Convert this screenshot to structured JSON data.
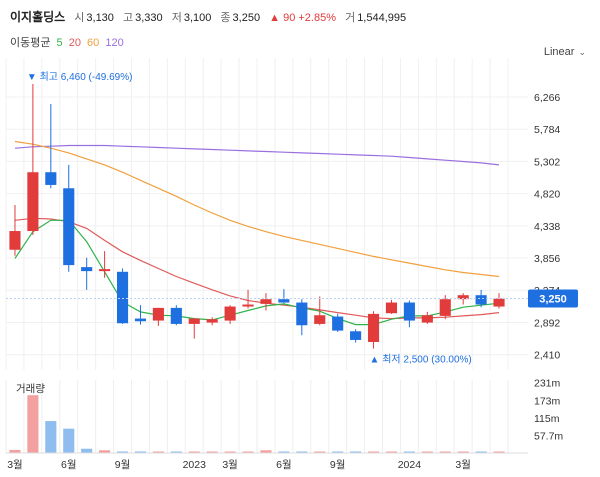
{
  "header": {
    "name": "이지홀딩스",
    "open_label": "시",
    "open": "3,130",
    "high_label": "고",
    "high": "3,330",
    "low_label": "저",
    "low": "3,100",
    "close_label": "종",
    "close": "3,250",
    "change": "▲ 90 +2.85%",
    "volume_label": "거",
    "volume": "1,544,995"
  },
  "moving_avg": {
    "label": "이동평균",
    "periods": [
      {
        "value": "5",
        "color": "#2eb34a"
      },
      {
        "value": "20",
        "color": "#e05a5a"
      },
      {
        "value": "60",
        "color": "#f0a03c"
      },
      {
        "value": "120",
        "color": "#9a6fe0"
      }
    ]
  },
  "scale_mode": "Linear",
  "colors": {
    "up": "#e23b3b",
    "down": "#1e6fe0",
    "up_vol": "#f2a0a0",
    "down_vol": "#8fbdf0",
    "current": "#1e6fe0"
  },
  "chart_data": {
    "type": "candlestick",
    "title": "이지홀딩스",
    "price_ticks": [
      "6,266",
      "5,784",
      "5,302",
      "4,820",
      "4,338",
      "3,856",
      "3,374",
      "2,892",
      "2,410"
    ],
    "price_tick_values": [
      6266,
      5784,
      5302,
      4820,
      4338,
      3856,
      3374,
      2892,
      2410
    ],
    "ylim": [
      2300,
      6700
    ],
    "x_labels": [
      "3월",
      "6월",
      "9월",
      "2023",
      "3월",
      "6월",
      "9월",
      "2024",
      "3월"
    ],
    "x_label_index": [
      0,
      3,
      6,
      10,
      12,
      15,
      18,
      22,
      25
    ],
    "candles": [
      {
        "o": 3980,
        "h": 4650,
        "l": 3890,
        "c": 4260
      },
      {
        "o": 4260,
        "h": 6460,
        "l": 4200,
        "c": 5140
      },
      {
        "o": 5140,
        "h": 6160,
        "l": 4900,
        "c": 4950
      },
      {
        "o": 4900,
        "h": 5250,
        "l": 3650,
        "c": 3750
      },
      {
        "o": 3720,
        "h": 3860,
        "l": 3380,
        "c": 3660
      },
      {
        "o": 3660,
        "h": 3960,
        "l": 3560,
        "c": 3690
      },
      {
        "o": 3650,
        "h": 3700,
        "l": 2870,
        "c": 2880
      },
      {
        "o": 2950,
        "h": 3150,
        "l": 2860,
        "c": 2910
      },
      {
        "o": 2920,
        "h": 3110,
        "l": 2840,
        "c": 3110
      },
      {
        "o": 3110,
        "h": 3150,
        "l": 2850,
        "c": 2870
      },
      {
        "o": 2870,
        "h": 2960,
        "l": 2650,
        "c": 2950
      },
      {
        "o": 2890,
        "h": 2970,
        "l": 2850,
        "c": 2940
      },
      {
        "o": 2920,
        "h": 3150,
        "l": 2870,
        "c": 3130
      },
      {
        "o": 3130,
        "h": 3380,
        "l": 3100,
        "c": 3160
      },
      {
        "o": 3170,
        "h": 3330,
        "l": 3070,
        "c": 3240
      },
      {
        "o": 3240,
        "h": 3390,
        "l": 3180,
        "c": 3190
      },
      {
        "o": 3190,
        "h": 3240,
        "l": 2700,
        "c": 2850
      },
      {
        "o": 2870,
        "h": 3280,
        "l": 2850,
        "c": 3000
      },
      {
        "o": 2980,
        "h": 3020,
        "l": 2750,
        "c": 2770
      },
      {
        "o": 2760,
        "h": 2790,
        "l": 2590,
        "c": 2630
      },
      {
        "o": 2600,
        "h": 3060,
        "l": 2500,
        "c": 3020
      },
      {
        "o": 3030,
        "h": 3230,
        "l": 3020,
        "c": 3190
      },
      {
        "o": 3190,
        "h": 3220,
        "l": 2820,
        "c": 2920
      },
      {
        "o": 2890,
        "h": 3050,
        "l": 2870,
        "c": 3000
      },
      {
        "o": 2990,
        "h": 3300,
        "l": 2940,
        "c": 3240
      },
      {
        "o": 3240,
        "h": 3330,
        "l": 3160,
        "c": 3300
      },
      {
        "o": 3300,
        "h": 3380,
        "l": 3120,
        "c": 3160
      },
      {
        "o": 3130,
        "h": 3330,
        "l": 3100,
        "c": 3250
      }
    ],
    "ma5": [
      3850,
      4250,
      4420,
      4420,
      4100,
      3650,
      3200,
      3050,
      3000,
      2990,
      2950,
      2930,
      3000,
      3070,
      3140,
      3170,
      3110,
      3060,
      2950,
      2860,
      2860,
      2940,
      2990,
      2990,
      3050,
      3120,
      3150,
      3180
    ],
    "ma20": [
      4420,
      4450,
      4440,
      4400,
      4300,
      4120,
      3950,
      3820,
      3700,
      3580,
      3480,
      3380,
      3290,
      3220,
      3180,
      3150,
      3120,
      3080,
      3040,
      3000,
      2960,
      2950,
      2960,
      2960,
      2970,
      2990,
      3010,
      3040
    ],
    "ma60": [
      5600,
      5560,
      5500,
      5430,
      5340,
      5250,
      5140,
      5020,
      4900,
      4780,
      4650,
      4530,
      4420,
      4330,
      4250,
      4180,
      4120,
      4060,
      4000,
      3940,
      3880,
      3830,
      3780,
      3730,
      3680,
      3640,
      3610,
      3580
    ],
    "ma120": [
      5500,
      5520,
      5530,
      5540,
      5540,
      5540,
      5530,
      5520,
      5510,
      5500,
      5490,
      5480,
      5470,
      5460,
      5450,
      5440,
      5430,
      5420,
      5410,
      5400,
      5390,
      5380,
      5360,
      5340,
      5320,
      5300,
      5280,
      5250
    ],
    "high_annotation": {
      "label": "최고",
      "value": "6,460 (-49.69%)",
      "index": 1,
      "price": 6460
    },
    "low_annotation": {
      "label": "최저",
      "value": "2,500 (30.00%)",
      "index": 20,
      "price": 2500
    },
    "current_price": {
      "label": "3,250",
      "value": 3250
    },
    "volume": {
      "label": "거래량",
      "ticks": [
        "231m",
        "173m",
        "115m",
        "57.7m"
      ],
      "tick_values": [
        231,
        173,
        115,
        57.7
      ],
      "ylim": [
        0,
        240
      ],
      "values": [
        10,
        190,
        105,
        80,
        14,
        9,
        5,
        5,
        3,
        2,
        2,
        2,
        2,
        2,
        9,
        3,
        4,
        4,
        3,
        2,
        3,
        2,
        2,
        2,
        2,
        2,
        2,
        2
      ]
    }
  }
}
